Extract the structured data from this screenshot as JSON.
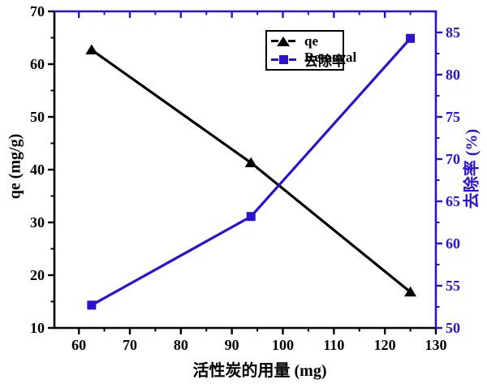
{
  "chart_data": {
    "type": "line",
    "title": "",
    "xlabel": "活性炭的用量 (mg)",
    "x_axis": {
      "range": [
        55.2,
        130
      ],
      "ticks": [
        60,
        70,
        80,
        90,
        100,
        110,
        120,
        130
      ],
      "minor_ticks": [
        65,
        75,
        85,
        95,
        105,
        115,
        125
      ],
      "color": "#000000"
    },
    "left_axis": {
      "label": "qe (mg/g)",
      "range": [
        10,
        70
      ],
      "ticks": [
        10,
        20,
        30,
        40,
        50,
        60,
        70
      ],
      "minor_ticks": [
        15,
        25,
        35,
        45,
        55,
        65
      ],
      "color": "#000000"
    },
    "right_axis": {
      "label": "去除率 (%)",
      "range": [
        50,
        87.5
      ],
      "ticks": [
        50,
        55,
        60,
        65,
        70,
        75,
        80,
        85
      ],
      "minor_ticks": [
        52.5,
        57.5,
        62.5,
        67.5,
        72.5,
        77.5,
        82.5
      ],
      "color": "#2a12d0"
    },
    "top_axis": {
      "color": "#2a12d0"
    },
    "series": [
      {
        "name": "qe",
        "axis": "left",
        "color": "#000000",
        "marker": "triangle",
        "x": [
          62.5,
          93.75,
          125
        ],
        "y": [
          62.7,
          41.3,
          16.8
        ]
      },
      {
        "name": "Removal",
        "name_cn": "去除率",
        "axis": "right",
        "color": "#2a12d0",
        "marker": "square",
        "x": [
          62.5,
          93.75,
          125
        ],
        "y": [
          52.7,
          63.2,
          84.3
        ]
      }
    ],
    "legend": {
      "position": "top-center",
      "entries": [
        {
          "label": "qe"
        },
        {
          "label": "Removal",
          "overlay_label": "去除率"
        }
      ]
    },
    "grid": "off",
    "background": "#ffffff"
  }
}
